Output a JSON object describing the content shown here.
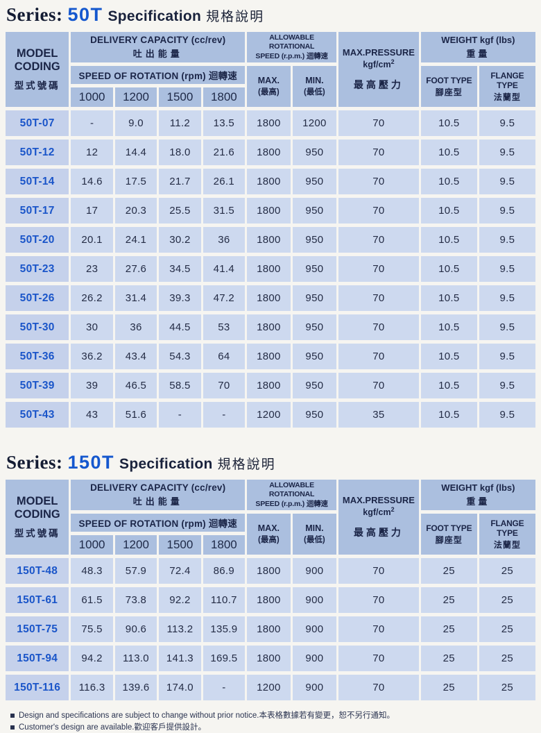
{
  "titles": {
    "series_label": "Series:",
    "spec_label": "Specification",
    "spec_cjk": "規格說明"
  },
  "header": {
    "model_line1": "MODEL",
    "model_line2": "CODING",
    "model_cjk": "型式號碼",
    "delivery_en": "DELIVERY CAPACITY  (cc/rev)",
    "delivery_cjk": "吐出能量",
    "speed_of_rotation": "SPEED OF ROTATION (rpm) 迴轉速",
    "speed_cols": [
      "1000",
      "1200",
      "1500",
      "1800"
    ],
    "allowable_line1": "ALLOWABLE ROTATIONAL",
    "allowable_line2": "SPEED (r.p.m.) 迴轉速",
    "max_label": "MAX.",
    "max_cjk": "(最高)",
    "min_label": "MIN.",
    "min_cjk": "(最低)",
    "pressure_en": "MAX.PRESSURE",
    "pressure_unit": "kgf/cm",
    "pressure_sup": "2",
    "pressure_cjk": "最高壓力",
    "weight_en": "WEIGHT kgf (lbs)",
    "weight_cjk": "重量",
    "foot_en": "FOOT TYPE",
    "foot_cjk": "腳座型",
    "flange_en": "FLANGE TYPE",
    "flange_cjk": "法蘭型"
  },
  "sections": [
    {
      "series_code": "50T",
      "rows": [
        {
          "model": "50T-07",
          "speeds": [
            "-",
            "9.0",
            "11.2",
            "13.5"
          ],
          "max_rpm": "1800",
          "min_rpm": "1200",
          "pressure": "70",
          "foot": "10.5",
          "flange": "9.5"
        },
        {
          "model": "50T-12",
          "speeds": [
            "12",
            "14.4",
            "18.0",
            "21.6"
          ],
          "max_rpm": "1800",
          "min_rpm": "950",
          "pressure": "70",
          "foot": "10.5",
          "flange": "9.5"
        },
        {
          "model": "50T-14",
          "speeds": [
            "14.6",
            "17.5",
            "21.7",
            "26.1"
          ],
          "max_rpm": "1800",
          "min_rpm": "950",
          "pressure": "70",
          "foot": "10.5",
          "flange": "9.5"
        },
        {
          "model": "50T-17",
          "speeds": [
            "17",
            "20.3",
            "25.5",
            "31.5"
          ],
          "max_rpm": "1800",
          "min_rpm": "950",
          "pressure": "70",
          "foot": "10.5",
          "flange": "9.5"
        },
        {
          "model": "50T-20",
          "speeds": [
            "20.1",
            "24.1",
            "30.2",
            "36"
          ],
          "max_rpm": "1800",
          "min_rpm": "950",
          "pressure": "70",
          "foot": "10.5",
          "flange": "9.5"
        },
        {
          "model": "50T-23",
          "speeds": [
            "23",
            "27.6",
            "34.5",
            "41.4"
          ],
          "max_rpm": "1800",
          "min_rpm": "950",
          "pressure": "70",
          "foot": "10.5",
          "flange": "9.5"
        },
        {
          "model": "50T-26",
          "speeds": [
            "26.2",
            "31.4",
            "39.3",
            "47.2"
          ],
          "max_rpm": "1800",
          "min_rpm": "950",
          "pressure": "70",
          "foot": "10.5",
          "flange": "9.5"
        },
        {
          "model": "50T-30",
          "speeds": [
            "30",
            "36",
            "44.5",
            "53"
          ],
          "max_rpm": "1800",
          "min_rpm": "950",
          "pressure": "70",
          "foot": "10.5",
          "flange": "9.5"
        },
        {
          "model": "50T-36",
          "speeds": [
            "36.2",
            "43.4",
            "54.3",
            "64"
          ],
          "max_rpm": "1800",
          "min_rpm": "950",
          "pressure": "70",
          "foot": "10.5",
          "flange": "9.5"
        },
        {
          "model": "50T-39",
          "speeds": [
            "39",
            "46.5",
            "58.5",
            "70"
          ],
          "max_rpm": "1800",
          "min_rpm": "950",
          "pressure": "70",
          "foot": "10.5",
          "flange": "9.5"
        },
        {
          "model": "50T-43",
          "speeds": [
            "43",
            "51.6",
            "-",
            "-"
          ],
          "max_rpm": "1200",
          "min_rpm": "950",
          "pressure": "35",
          "foot": "10.5",
          "flange": "9.5"
        }
      ]
    },
    {
      "series_code": "150T",
      "rows": [
        {
          "model": "150T-48",
          "speeds": [
            "48.3",
            "57.9",
            "72.4",
            "86.9"
          ],
          "max_rpm": "1800",
          "min_rpm": "900",
          "pressure": "70",
          "foot": "25",
          "flange": "25"
        },
        {
          "model": "150T-61",
          "speeds": [
            "61.5",
            "73.8",
            "92.2",
            "110.7"
          ],
          "max_rpm": "1800",
          "min_rpm": "900",
          "pressure": "70",
          "foot": "25",
          "flange": "25"
        },
        {
          "model": "150T-75",
          "speeds": [
            "75.5",
            "90.6",
            "113.2",
            "135.9"
          ],
          "max_rpm": "1800",
          "min_rpm": "900",
          "pressure": "70",
          "foot": "25",
          "flange": "25"
        },
        {
          "model": "150T-94",
          "speeds": [
            "94.2",
            "113.0",
            "141.3",
            "169.5"
          ],
          "max_rpm": "1800",
          "min_rpm": "900",
          "pressure": "70",
          "foot": "25",
          "flange": "25"
        },
        {
          "model": "150T-116",
          "speeds": [
            "116.3",
            "139.6",
            "174.0",
            "-"
          ],
          "max_rpm": "1200",
          "min_rpm": "900",
          "pressure": "70",
          "foot": "25",
          "flange": "25"
        }
      ]
    }
  ],
  "notes": [
    "Design and specifications are subject to change without prior notice.本表格數據若有變更，恕不另行通知。",
    "Customer's design are available.歡迎客戶提供設計。"
  ],
  "colors": {
    "header_cell": "#abbfdf",
    "data_cell": "#cdd9ef",
    "model_text": "#1a55c9",
    "accent_blue": "#1457ce",
    "ink": "#1b2547"
  }
}
